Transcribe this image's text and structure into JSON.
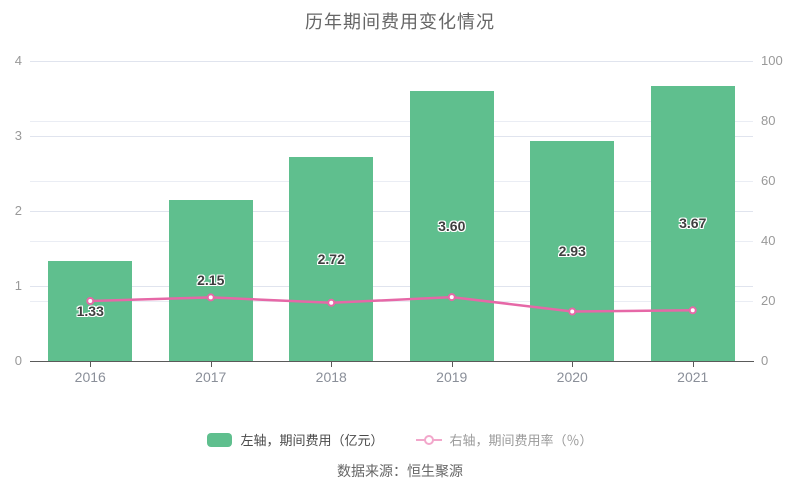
{
  "title": "历年期间费用变化情况",
  "source": "数据来源：恒生聚源",
  "legend": [
    {
      "label": "左轴，期间费用（亿元）",
      "type": "bar"
    },
    {
      "label": "右轴，期间费用率（％）",
      "type": "line"
    }
  ],
  "colors": {
    "bar": "#5fbf8e",
    "line": "#e668a7",
    "line_legend": "#f2a7cb",
    "grid_major": "#e0e4ee",
    "grid_minor": "#eaedf4",
    "axis": "#5a5a5a",
    "axis_label": "#999999",
    "title_text": "#666666",
    "bar_label": "#3f3f3f"
  },
  "chart_data": {
    "type": "bar+line",
    "title": "历年期间费用变化情况",
    "categories": [
      "2016",
      "2017",
      "2018",
      "2019",
      "2020",
      "2021"
    ],
    "series": [
      {
        "name": "左轴，期间费用（亿元）",
        "type": "bar",
        "axis": "left",
        "values": [
          1.33,
          2.15,
          2.72,
          3.6,
          2.93,
          3.67
        ],
        "labels": [
          "1.33",
          "2.15",
          "2.72",
          "3.60",
          "2.93",
          "3.67"
        ]
      },
      {
        "name": "右轴，期间费用率（％）",
        "type": "line",
        "axis": "right",
        "values": [
          20.0,
          21.2,
          19.4,
          21.3,
          16.5,
          16.9
        ]
      }
    ],
    "left_axis": {
      "min": 0,
      "max": 4,
      "ticks": [
        0,
        1,
        2,
        3,
        4
      ]
    },
    "right_axis": {
      "min": 0,
      "max": 100,
      "ticks": [
        0,
        20,
        40,
        60,
        80,
        100
      ]
    },
    "legend_position": "bottom",
    "grid": true
  }
}
